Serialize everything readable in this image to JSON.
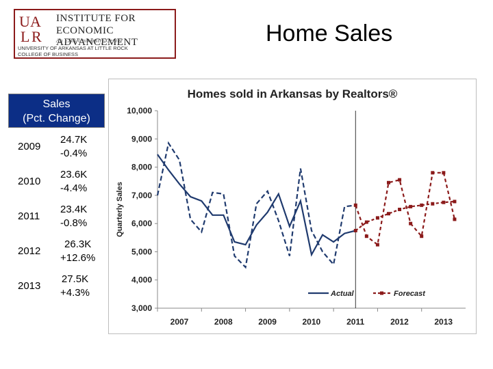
{
  "logo": {
    "mark_text": "UALR",
    "line1": "INSTITUTE FOR",
    "line2": "ECONOMIC ADVANCEMENT",
    "line3": "An EDA University Center",
    "line4": "UNIVERSITY OF ARKANSAS AT LITTLE ROCK",
    "line5": "COLLEGE OF BUSINESS",
    "color": "#8b1a1a"
  },
  "slide_title": "Home Sales",
  "table": {
    "header": "Sales (Pct. Change)",
    "header_color": "#0c2e86",
    "rows": [
      {
        "year": "2009",
        "sales": "24.7K",
        "change": "-0.4%"
      },
      {
        "year": "2010",
        "sales": "23.6K",
        "change": "-4.4%"
      },
      {
        "year": "2011",
        "sales": "23.4K",
        "change": "-0.8%"
      },
      {
        "year": "2012",
        "sales": "26.3K",
        "change": "+12.6%"
      },
      {
        "year": "2013",
        "sales": "27.5K",
        "change": "+4.3%"
      }
    ]
  },
  "chart_data": {
    "type": "line",
    "title": "Homes sold in Arkansas by Realtors®",
    "ylabel": "Quarterly Sales",
    "ylim": [
      3000,
      10000
    ],
    "ytick_values": [
      3000,
      4000,
      5000,
      6000,
      7000,
      8000,
      9000,
      10000
    ],
    "yticks": [
      "3,000",
      "4,000",
      "5,000",
      "6,000",
      "7,000",
      "8,000",
      "9,000",
      "10,000"
    ],
    "xlim": [
      2007.0,
      2014.0
    ],
    "xtick_values": [
      2007,
      2008,
      2009,
      2010,
      2011,
      2012,
      2013
    ],
    "xticks": [
      "2007",
      "2008",
      "2009",
      "2010",
      "2011",
      "2012",
      "2013"
    ],
    "forecast_start": 2011.5,
    "grid": "horizontal",
    "legend_position": "bottom-right",
    "series": [
      {
        "name": "Actual",
        "style": "solid-and-dashed",
        "color": "#1f3a6e",
        "x": [
          2007.0,
          2007.25,
          2007.5,
          2007.75,
          2008.0,
          2008.25,
          2008.5,
          2008.75,
          2009.0,
          2009.25,
          2009.5,
          2009.75,
          2010.0,
          2010.25,
          2010.5,
          2010.75,
          2011.0,
          2011.25,
          2011.5
        ],
        "trend": [
          8450,
          7900,
          7400,
          6950,
          6800,
          6300,
          6300,
          5350,
          5250,
          5950,
          6400,
          7050,
          5900,
          6800,
          4900,
          5600,
          5350,
          5650,
          5750
        ],
        "values": [
          7000,
          8850,
          8250,
          6150,
          5700,
          7100,
          7050,
          4850,
          4450,
          6700,
          7150,
          6100,
          4850,
          7950,
          5750,
          5000,
          4550,
          6600,
          6650
        ]
      },
      {
        "name": "Forecast",
        "style": "marker",
        "color": "#8b1a1a",
        "x": [
          2011.5,
          2011.75,
          2012.0,
          2012.25,
          2012.5,
          2012.75,
          2013.0,
          2013.25,
          2013.5,
          2013.75
        ],
        "trend": [
          5750,
          6050,
          6200,
          6350,
          6500,
          6600,
          6650,
          6700,
          6750,
          6780
        ],
        "values": [
          6650,
          5550,
          5250,
          7450,
          7550,
          6000,
          5550,
          7800,
          7800,
          6150
        ]
      }
    ]
  }
}
